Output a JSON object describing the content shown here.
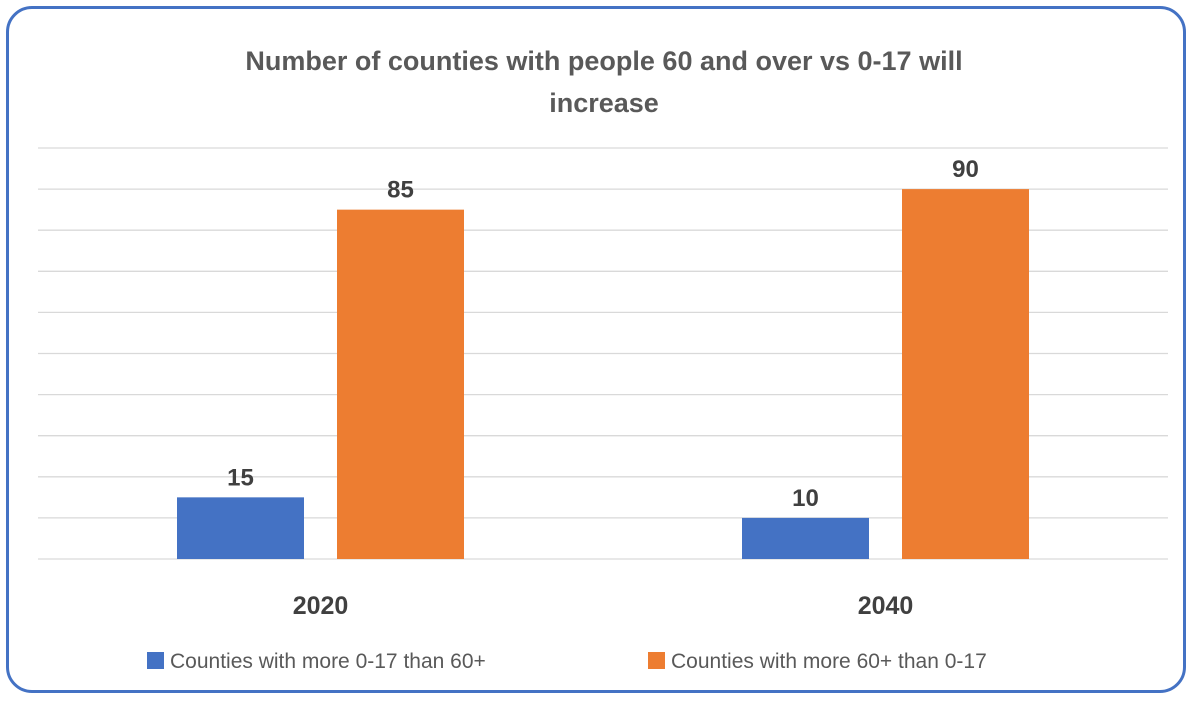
{
  "chart_data": {
    "type": "bar",
    "title_lines": [
      "Number of counties with people 60 and over vs 0-17 will",
      "increase"
    ],
    "categories": [
      "2020",
      "2040"
    ],
    "series": [
      {
        "name": "Counties with more 0-17 than 60+",
        "color": "#4472C4",
        "values": [
          15,
          10
        ]
      },
      {
        "name": "Counties with more 60+ than 0-17",
        "color": "#ED7D31",
        "values": [
          85,
          90
        ]
      }
    ],
    "ylim": [
      0,
      100
    ],
    "y_gridline_step": 10,
    "grid": true,
    "y_axis_labels_shown": false,
    "data_labels": true,
    "legend_position": "bottom"
  },
  "colors": {
    "border": "#4472C4",
    "gridline": "#D9D9D9"
  }
}
